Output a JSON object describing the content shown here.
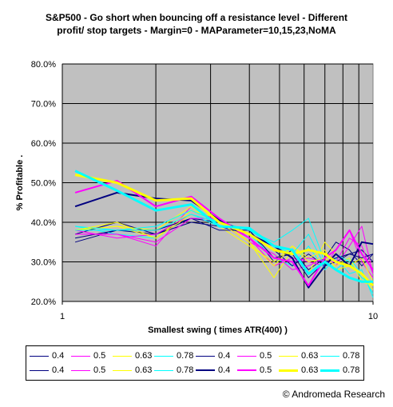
{
  "chart_data": {
    "type": "line",
    "title": "S&P500 - Go short when bouncing off a resistance level - Different\nprofit/ stop targets - Margin=0 - MAParameter=10,15,23,NoMA",
    "xlabel": "Smallest swing ( times ATR(400) )",
    "ylabel": "% Profitable .",
    "x_scale": "log",
    "xlim": [
      1,
      10
    ],
    "ylim": [
      0.2,
      0.8
    ],
    "x_ticks": [
      "1",
      "10"
    ],
    "y_ticks": [
      "20.0%",
      "30.0%",
      "40.0%",
      "50.0%",
      "60.0%",
      "70.0%",
      "80.0%"
    ],
    "y_tick_values": [
      0.2,
      0.3,
      0.4,
      0.5,
      0.6,
      0.7,
      0.8
    ],
    "vertical_gridlines_x": [
      2,
      3,
      4,
      5,
      6,
      7,
      8,
      9
    ],
    "plot_background": "#c0c0c0",
    "x": [
      1.1,
      1.5,
      2,
      2.6,
      3.2,
      4,
      4.8,
      5.5,
      6.2,
      7,
      7.6,
      8.4,
      9.2,
      10
    ],
    "series": [
      {
        "name": "0.4",
        "color": "#000080",
        "width": 1,
        "values": [
          0.35,
          0.38,
          0.37,
          0.41,
          0.4,
          0.38,
          0.3,
          0.33,
          0.28,
          0.31,
          0.35,
          0.33,
          0.29,
          0.32
        ]
      },
      {
        "name": "0.5",
        "color": "#ff00ff",
        "width": 1,
        "values": [
          0.37,
          0.37,
          0.34,
          0.44,
          0.4,
          0.36,
          0.29,
          0.31,
          0.3,
          0.29,
          0.33,
          0.38,
          0.3,
          0.26
        ]
      },
      {
        "name": "0.63",
        "color": "#ffff00",
        "width": 1,
        "values": [
          0.38,
          0.39,
          0.36,
          0.43,
          0.41,
          0.35,
          0.26,
          0.33,
          0.27,
          0.35,
          0.32,
          0.3,
          0.26,
          0.23
        ]
      },
      {
        "name": "0.78",
        "color": "#00ffff",
        "width": 1,
        "values": [
          0.39,
          0.37,
          0.36,
          0.42,
          0.39,
          0.37,
          0.31,
          0.29,
          0.34,
          0.28,
          0.31,
          0.27,
          0.28,
          0.21
        ]
      },
      {
        "name": "0.4",
        "color": "#000080",
        "width": 1,
        "values": [
          0.37,
          0.4,
          0.37,
          0.4,
          0.39,
          0.37,
          0.33,
          0.29,
          0.32,
          0.29,
          0.3,
          0.32,
          0.33,
          0.3
        ]
      },
      {
        "name": "0.5",
        "color": "#ff00ff",
        "width": 1,
        "values": [
          0.38,
          0.36,
          0.37,
          0.42,
          0.4,
          0.35,
          0.32,
          0.28,
          0.29,
          0.31,
          0.29,
          0.34,
          0.39,
          0.27
        ]
      },
      {
        "name": "0.63",
        "color": "#ffff00",
        "width": 1,
        "values": [
          0.38,
          0.39,
          0.38,
          0.44,
          0.39,
          0.34,
          0.3,
          0.34,
          0.31,
          0.33,
          0.28,
          0.29,
          0.31,
          0.25
        ]
      },
      {
        "name": "0.78",
        "color": "#00ffff",
        "width": 1,
        "values": [
          0.39,
          0.38,
          0.39,
          0.43,
          0.4,
          0.38,
          0.35,
          0.38,
          0.41,
          0.3,
          0.28,
          0.31,
          0.27,
          0.22
        ]
      },
      {
        "name": "0.4",
        "color": "#000080",
        "width": 1,
        "values": [
          0.36,
          0.38,
          0.38,
          0.41,
          0.38,
          0.38,
          0.31,
          0.32,
          0.26,
          0.3,
          0.31,
          0.32,
          0.31,
          0.32
        ]
      },
      {
        "name": "0.5",
        "color": "#ff00ff",
        "width": 1,
        "values": [
          0.37,
          0.37,
          0.35,
          0.41,
          0.41,
          0.36,
          0.31,
          0.3,
          0.31,
          0.3,
          0.3,
          0.36,
          0.34,
          0.27
        ]
      },
      {
        "name": "0.63",
        "color": "#ffff00",
        "width": 1,
        "values": [
          0.38,
          0.4,
          0.36,
          0.42,
          0.4,
          0.35,
          0.29,
          0.34,
          0.3,
          0.31,
          0.29,
          0.31,
          0.25,
          0.24
        ]
      },
      {
        "name": "0.78",
        "color": "#00ffff",
        "width": 1,
        "values": [
          0.38,
          0.38,
          0.38,
          0.42,
          0.4,
          0.38,
          0.34,
          0.32,
          0.37,
          0.29,
          0.32,
          0.3,
          0.26,
          0.24
        ]
      },
      {
        "name": "0.4",
        "color": "#000080",
        "width": 2,
        "values": [
          0.44,
          0.475,
          0.46,
          0.455,
          0.405,
          0.37,
          0.34,
          0.31,
          0.235,
          0.29,
          0.32,
          0.29,
          0.35,
          0.345
        ]
      },
      {
        "name": "0.5",
        "color": "#ff00ff",
        "width": 2,
        "values": [
          0.475,
          0.505,
          0.44,
          0.465,
          0.41,
          0.36,
          0.31,
          0.3,
          0.24,
          0.31,
          0.33,
          0.38,
          0.32,
          0.28
        ]
      },
      {
        "name": "0.63",
        "color": "#ffff00",
        "width": 3,
        "values": [
          0.52,
          0.5,
          0.455,
          0.46,
          0.4,
          0.37,
          0.33,
          0.32,
          0.33,
          0.32,
          0.3,
          0.29,
          0.27,
          0.24
        ]
      },
      {
        "name": "0.78",
        "color": "#00ffff",
        "width": 3,
        "values": [
          0.53,
          0.48,
          0.43,
          0.445,
          0.39,
          0.385,
          0.34,
          0.33,
          0.27,
          0.3,
          0.28,
          0.26,
          0.25,
          0.25
        ]
      }
    ],
    "legend_position": "bottom"
  },
  "copyright": "© Andromeda Research"
}
